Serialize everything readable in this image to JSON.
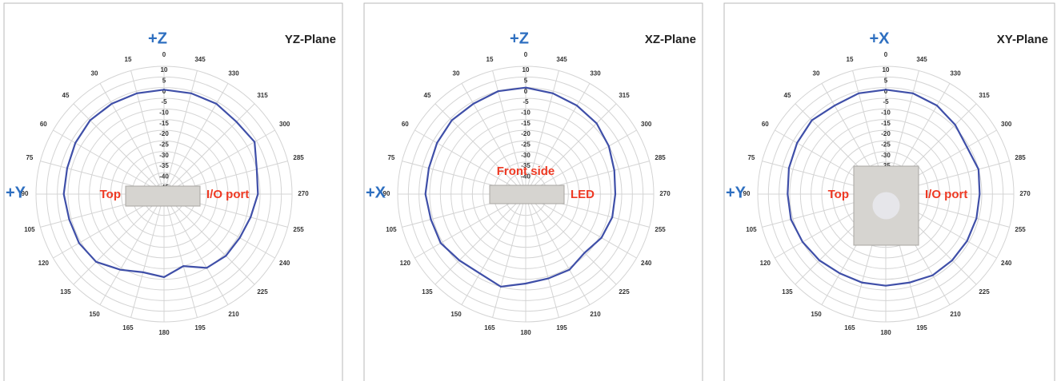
{
  "chart_data": [
    {
      "type": "radar",
      "title": "YZ-Plane",
      "axis_top_label": "+Z",
      "axis_left_label": "+Y",
      "left_annotation": "Top",
      "right_annotation": "I/O port",
      "categories": [
        0,
        15,
        30,
        45,
        60,
        75,
        90,
        105,
        120,
        135,
        150,
        165,
        180,
        195,
        210,
        225,
        240,
        255,
        270,
        285,
        300,
        315,
        330,
        345
      ],
      "series": [
        {
          "color": "#3f4fa8",
          "values": [
            -1,
            -1,
            -1,
            -1,
            -2,
            -3,
            -3,
            -4,
            -4,
            -5,
            -9,
            -12,
            -11,
            -15,
            -10,
            -9,
            -9,
            -8,
            -6,
            -5,
            -1,
            -2,
            -1,
            -1
          ]
        }
      ],
      "ylim": [
        -50,
        10
      ],
      "yticks": [
        10,
        5,
        0,
        -5,
        -10,
        -15,
        -20,
        -25,
        -30,
        -35,
        -40,
        -45
      ],
      "grid": true
    },
    {
      "type": "radar",
      "title": "XZ-Plane",
      "axis_top_label": "+Z",
      "axis_left_label": "+X",
      "center_annotation": "Front side",
      "right_annotation": "LED",
      "categories": [
        0,
        15,
        30,
        45,
        60,
        75,
        90,
        105,
        120,
        135,
        150,
        165,
        180,
        195,
        210,
        225,
        240,
        255,
        270,
        285,
        300,
        315,
        330,
        345
      ],
      "series": [
        {
          "color": "#3f4fa8",
          "values": [
            0,
            0,
            -1,
            -1,
            -2,
            -3,
            -3,
            -4,
            -4,
            -6,
            -7,
            -5,
            -8,
            -9,
            -9,
            -11,
            -9,
            -8,
            -8,
            -7,
            -5,
            -3,
            -2,
            -1
          ]
        }
      ],
      "ylim": [
        -50,
        10
      ],
      "yticks": [
        10,
        5,
        0,
        -5,
        -10,
        -15,
        -20,
        -25,
        -30,
        -35,
        -40
      ],
      "grid": true
    },
    {
      "type": "radar",
      "title": "XY-Plane",
      "axis_top_label": "+X",
      "axis_left_label": "+Y",
      "left_annotation": "Top",
      "right_annotation": "I/O port",
      "categories": [
        0,
        15,
        30,
        45,
        60,
        75,
        90,
        105,
        120,
        135,
        150,
        165,
        180,
        195,
        210,
        225,
        240,
        255,
        270,
        285,
        300,
        315,
        330,
        345
      ],
      "series": [
        {
          "color": "#3f4fa8",
          "values": [
            -1,
            -1,
            -2,
            -1,
            -2,
            -3,
            -4,
            -4,
            -5,
            -6,
            -7,
            -7,
            -7,
            -7,
            -6,
            -6,
            -6,
            -6,
            -6,
            -5,
            -6,
            -4,
            -2,
            -1
          ]
        }
      ],
      "ylim": [
        -50,
        10
      ],
      "yticks": [
        10,
        5,
        0,
        -5,
        -10,
        -15,
        -20,
        -25,
        -30,
        -35
      ],
      "grid": true
    }
  ]
}
